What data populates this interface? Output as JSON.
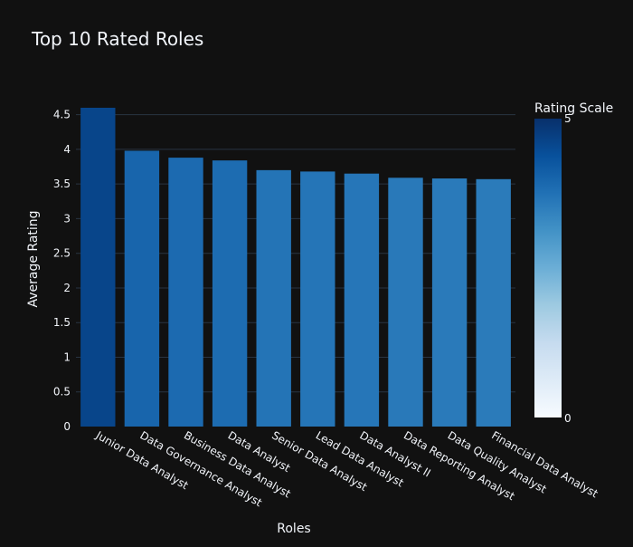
{
  "chart_data": {
    "type": "bar",
    "title": "Top 10 Rated Roles",
    "xlabel": "Roles",
    "ylabel": "Average Rating",
    "categories": [
      "Junior Data Analyst",
      "Data Governance Analyst",
      "Business Data Analyst",
      "Data Analyst",
      "Senior Data Analyst",
      "Lead Data Analyst",
      "Data Analyst II",
      "Data Reporting Analyst",
      "Data Quality Analyst",
      "Financial Data Analyst"
    ],
    "values": [
      4.6,
      3.98,
      3.88,
      3.84,
      3.7,
      3.68,
      3.65,
      3.59,
      3.58,
      3.57
    ],
    "ylim": [
      0,
      4.6
    ],
    "yticks": [
      "0",
      "0.5",
      "1",
      "1.5",
      "2",
      "2.5",
      "3",
      "3.5",
      "4",
      "4.5"
    ],
    "grid": true,
    "colorbar": {
      "title": "Rating Scale",
      "min": 0,
      "max": 5,
      "min_label": "0",
      "max_label": "5",
      "colorscale": [
        "#f7fbff",
        "#deebf7",
        "#c6dbef",
        "#9ecae1",
        "#6baed6",
        "#4292c6",
        "#2171b5",
        "#08519c",
        "#08306b"
      ]
    },
    "colors": {
      "background": "#111111",
      "grid": "#283442",
      "text": "#f2f5fa"
    }
  }
}
